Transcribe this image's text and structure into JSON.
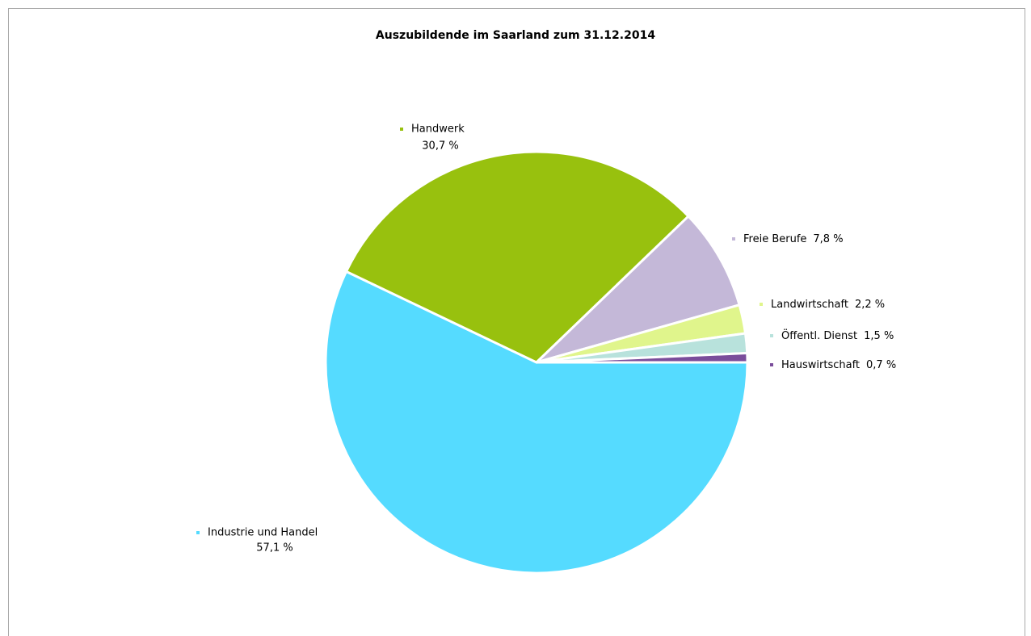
{
  "chart_data": {
    "type": "pie",
    "title": "Auszubildende im Saarland zum 31.12.2014",
    "categories": [
      "Industrie und Handel",
      "Handwerk",
      "Freie Berufe",
      "Landwirtschaft",
      "Öffentl. Dienst",
      "Hauswirtschaft"
    ],
    "values": [
      57.1,
      30.7,
      7.8,
      2.2,
      1.5,
      0.7
    ],
    "value_labels": [
      "57,1 %",
      "30,7 %",
      "7,8 %",
      "2,2 %",
      "1,5 %",
      "0,7 %"
    ],
    "colors": [
      "#55dbff",
      "#98c10e",
      "#c4b8d8",
      "#e0f58c",
      "#b8e2dc",
      "#7a4d9b"
    ]
  }
}
